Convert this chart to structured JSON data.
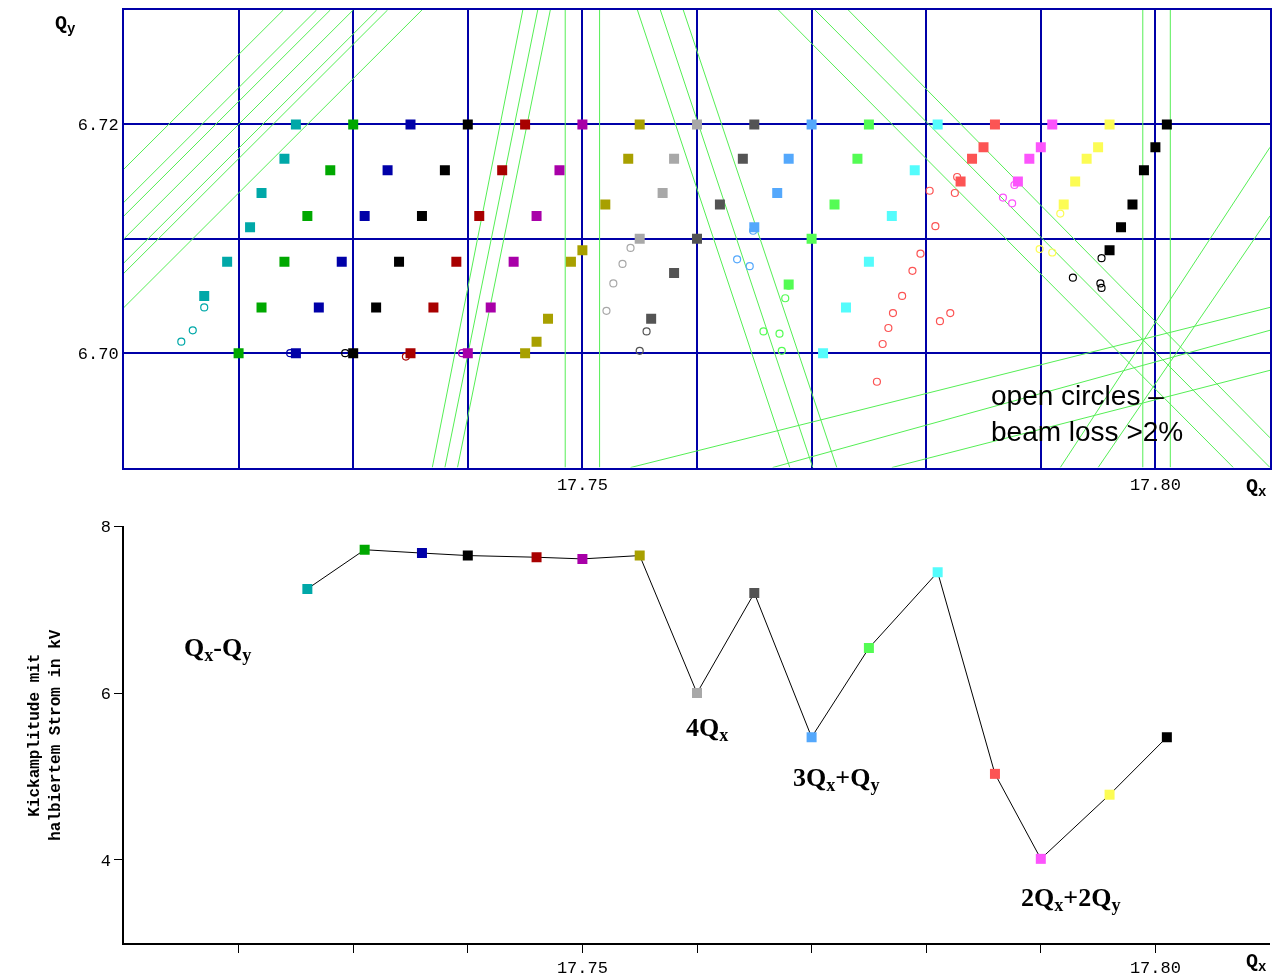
{
  "chart_data": [
    {
      "type": "scatter",
      "xlabel": "Q$_{x}$",
      "ylabel": "Q$_{y}$",
      "xlim": [
        17.71,
        17.81
      ],
      "ylim": [
        6.69,
        6.73
      ],
      "xticks": [
        {
          "value": 17.72,
          "label": null
        },
        {
          "value": 17.73,
          "label": null
        },
        {
          "value": 17.74,
          "label": null
        },
        17.75,
        {
          "value": 17.76,
          "label": null
        },
        {
          "value": 17.77,
          "label": null
        },
        {
          "value": 17.78,
          "label": null
        },
        {
          "value": 17.79,
          "label": null
        },
        {
          "value": 17.8,
          "label": "17.80"
        }
      ],
      "yticks": [
        {
          "value": 6.7,
          "label": "6.70"
        },
        {
          "value": 6.71,
          "label": null
        },
        6.72
      ],
      "grid": true,
      "annotations": [
        "open circles –\nbeam loss >2%"
      ],
      "series": [
        {
          "type": "line",
          "color": "#55ee55",
          "x": [
            17.71,
            17.7239
          ],
          "values": [
            6.7161,
            6.73
          ]
        },
        {
          "type": "line",
          "color": "#55ee55",
          "x": [
            17.71,
            17.7268
          ],
          "values": [
            6.7132,
            6.73
          ]
        },
        {
          "type": "line",
          "color": "#55ee55",
          "x": [
            17.71,
            17.728
          ],
          "values": [
            6.712,
            6.73
          ]
        },
        {
          "type": "line",
          "color": "#55ee55",
          "x": [
            17.71,
            17.73
          ],
          "values": [
            6.71,
            6.73
          ]
        },
        {
          "type": "line",
          "color": "#55ee55",
          "x": [
            17.71,
            17.7321
          ],
          "values": [
            6.7079,
            6.73
          ]
        },
        {
          "type": "line",
          "color": "#55ee55",
          "x": [
            17.71,
            17.733
          ],
          "values": [
            6.707,
            6.73
          ]
        },
        {
          "type": "line",
          "color": "#55ee55",
          "x": [
            17.71,
            17.736
          ],
          "values": [
            6.704,
            6.73
          ]
        },
        {
          "type": "line",
          "color": "#55ee55",
          "x": [
            17.7369,
            17.7448
          ],
          "values": [
            6.69,
            6.73
          ]
        },
        {
          "type": "line",
          "color": "#55ee55",
          "x": [
            17.738,
            17.7461
          ],
          "values": [
            6.69,
            6.73
          ]
        },
        {
          "type": "line",
          "color": "#55ee55",
          "x": [
            17.7391,
            17.7472
          ],
          "values": [
            6.69,
            6.73
          ]
        },
        {
          "type": "line",
          "color": "#55ee55",
          "x": [
            17.7485,
            17.7485
          ],
          "values": [
            6.69,
            6.73
          ]
        },
        {
          "type": "line",
          "color": "#55ee55",
          "x": [
            17.7515,
            17.7515
          ],
          "values": [
            6.69,
            6.73
          ]
        },
        {
          "type": "line",
          "color": "#55ee55",
          "x": [
            17.7989,
            17.7989
          ],
          "values": [
            6.69,
            6.73
          ]
        },
        {
          "type": "line",
          "color": "#55ee55",
          "x": [
            17.8013,
            17.8013
          ],
          "values": [
            6.69,
            6.73
          ]
        },
        {
          "type": "line",
          "color": "#55ee55",
          "x": [
            17.7548,
            17.7681
          ],
          "values": [
            6.73,
            6.69
          ]
        },
        {
          "type": "line",
          "color": "#55ee55",
          "x": [
            17.7568,
            17.7701
          ],
          "values": [
            6.73,
            6.69
          ]
        },
        {
          "type": "line",
          "color": "#55ee55",
          "x": [
            17.7588,
            17.7722
          ],
          "values": [
            6.73,
            6.69
          ]
        },
        {
          "type": "line",
          "color": "#55ee55",
          "x": [
            17.7671,
            17.8068
          ],
          "values": [
            6.73,
            6.69
          ]
        },
        {
          "type": "line",
          "color": "#55ee55",
          "x": [
            17.7703,
            17.81
          ],
          "values": [
            6.73,
            6.69
          ]
        },
        {
          "type": "line",
          "color": "#55ee55",
          "x": [
            17.7732,
            17.81
          ],
          "values": [
            6.73,
            6.6926
          ]
        },
        {
          "type": "line",
          "color": "#55ee55",
          "x": [
            17.7542,
            17.81
          ],
          "values": [
            6.69,
            6.704
          ]
        },
        {
          "type": "line",
          "color": "#55ee55",
          "x": [
            17.7666,
            17.81
          ],
          "values": [
            6.69,
            6.702
          ]
        },
        {
          "type": "line",
          "color": "#55ee55",
          "x": [
            17.777,
            17.81
          ],
          "values": [
            6.69,
            6.6985
          ]
        },
        {
          "type": "line",
          "color": "#55ee55",
          "x": [
            17.7917,
            17.81
          ],
          "values": [
            6.69,
            6.718
          ]
        },
        {
          "type": "line",
          "color": "#55ee55",
          "x": [
            17.795,
            17.81
          ],
          "values": [
            6.69,
            6.712
          ]
        },
        {
          "marker": "square",
          "color": "#00a8a8",
          "x": [
            17.717,
            17.719,
            17.721,
            17.722,
            17.724,
            17.725
          ],
          "values": [
            6.705,
            6.708,
            6.711,
            6.714,
            6.717,
            6.72
          ]
        },
        {
          "marker": "circle",
          "color": "#00a8a8",
          "x": [
            17.715,
            17.716,
            17.717
          ],
          "values": [
            6.701,
            6.702,
            6.704
          ]
        },
        {
          "marker": "square",
          "color": "#00a800",
          "x": [
            17.72,
            17.722,
            17.724,
            17.726,
            17.728,
            17.73
          ],
          "values": [
            6.7,
            6.704,
            6.708,
            6.712,
            6.716,
            6.72
          ]
        },
        {
          "marker": "square",
          "color": "#0000a8",
          "x": [
            17.725,
            17.727,
            17.729,
            17.731,
            17.733,
            17.735
          ],
          "values": [
            6.7,
            6.704,
            6.708,
            6.712,
            6.716,
            6.72
          ]
        },
        {
          "marker": "circle",
          "color": "#0000a8",
          "x": [
            17.7245
          ],
          "values": [
            6.7
          ]
        },
        {
          "marker": "square",
          "color": "#000000",
          "x": [
            17.73,
            17.732,
            17.734,
            17.736,
            17.738,
            17.74
          ],
          "values": [
            6.7,
            6.704,
            6.708,
            6.712,
            6.716,
            6.72
          ]
        },
        {
          "marker": "circle",
          "color": "#000000",
          "x": [
            17.7293
          ],
          "values": [
            6.7
          ]
        },
        {
          "marker": "square",
          "color": "#a80000",
          "x": [
            17.735,
            17.737,
            17.739,
            17.741,
            17.743,
            17.745
          ],
          "values": [
            6.7,
            6.704,
            6.708,
            6.712,
            6.716,
            6.72
          ]
        },
        {
          "marker": "circle",
          "color": "#a80000",
          "x": [
            17.7346
          ],
          "values": [
            6.6997
          ]
        },
        {
          "marker": "square",
          "color": "#a800a8",
          "x": [
            17.74,
            17.742,
            17.744,
            17.746,
            17.748,
            17.75
          ],
          "values": [
            6.7,
            6.704,
            6.708,
            6.712,
            6.716,
            6.72
          ]
        },
        {
          "marker": "circle",
          "color": "#a800a8",
          "x": [
            17.7395
          ],
          "values": [
            6.7
          ]
        },
        {
          "marker": "square",
          "color": "#a8a000",
          "x": [
            17.745,
            17.746,
            17.747,
            17.749,
            17.75,
            17.752,
            17.754,
            17.755
          ],
          "values": [
            6.7,
            6.701,
            6.703,
            6.708,
            6.709,
            6.713,
            6.717,
            6.72
          ]
        },
        {
          "marker": "square",
          "color": "#a8a8a8",
          "x": [
            17.755,
            17.757,
            17.758,
            17.76
          ],
          "values": [
            6.71,
            6.714,
            6.717,
            6.72
          ]
        },
        {
          "marker": "circle",
          "color": "#a8a8a8",
          "x": [
            17.7521,
            17.7527,
            17.7535,
            17.7542
          ],
          "values": [
            6.7037,
            6.7061,
            6.7078,
            6.7092
          ]
        },
        {
          "marker": "square",
          "color": "#545454",
          "x": [
            17.756,
            17.758,
            17.76,
            17.762,
            17.764,
            17.765
          ],
          "values": [
            6.703,
            6.707,
            6.71,
            6.713,
            6.717,
            6.72
          ]
        },
        {
          "marker": "circle",
          "color": "#545454",
          "x": [
            17.755,
            17.7556
          ],
          "values": [
            6.7002,
            6.7019
          ]
        },
        {
          "marker": "square",
          "color": "#54a8fc",
          "x": [
            17.765,
            17.767,
            17.768,
            17.77
          ],
          "values": [
            6.711,
            6.714,
            6.717,
            6.72
          ]
        },
        {
          "marker": "circle",
          "color": "#54a8fc",
          "x": [
            17.7649,
            17.7635,
            17.7646
          ],
          "values": [
            6.7107,
            6.7082,
            6.7076
          ]
        },
        {
          "marker": "square",
          "color": "#54fc54",
          "x": [
            17.768,
            17.77,
            17.772,
            17.774,
            17.775
          ],
          "values": [
            6.706,
            6.71,
            6.713,
            6.717,
            6.72
          ]
        },
        {
          "marker": "circle",
          "color": "#54fc54",
          "x": [
            17.768,
            17.7677,
            17.7658,
            17.7672,
            17.7674
          ],
          "values": [
            6.7059,
            6.7048,
            6.7019,
            6.7017,
            6.7002
          ]
        },
        {
          "marker": "square",
          "color": "#54fcfc",
          "x": [
            17.771,
            17.773,
            17.775,
            17.777,
            17.779,
            17.781
          ],
          "values": [
            6.7,
            6.704,
            6.708,
            6.712,
            6.716,
            6.72
          ]
        },
        {
          "marker": "square",
          "color": "#fc5454",
          "x": [
            17.783,
            17.784,
            17.785,
            17.786
          ],
          "values": [
            6.715,
            6.717,
            6.718,
            6.72
          ]
        },
        {
          "marker": "circle",
          "color": "#fc5454",
          "x": [
            17.7757,
            17.7762,
            17.7767,
            17.7771,
            17.7779,
            17.7788,
            17.7795,
            17.7808,
            17.7803,
            17.7825,
            17.7827,
            17.7812,
            17.7821
          ],
          "values": [
            6.6975,
            6.7008,
            6.7022,
            6.7035,
            6.705,
            6.7072,
            6.7087,
            6.7111,
            6.7142,
            6.714,
            6.7154,
            6.7028,
            6.7035
          ]
        },
        {
          "marker": "square",
          "color": "#fc54fc",
          "x": [
            17.788,
            17.789,
            17.79,
            17.791
          ],
          "values": [
            6.715,
            6.717,
            6.718,
            6.72
          ]
        },
        {
          "marker": "circle",
          "color": "#fc54fc",
          "x": [
            17.7877,
            17.7867,
            17.7875
          ],
          "values": [
            6.7147,
            6.7136,
            6.7131
          ]
        },
        {
          "marker": "square",
          "color": "#fcfc54",
          "x": [
            17.792,
            17.793,
            17.794,
            17.795,
            17.796
          ],
          "values": [
            6.713,
            6.715,
            6.717,
            6.718,
            6.72
          ]
        },
        {
          "marker": "circle",
          "color": "#fcfc54",
          "x": [
            17.7917,
            17.7899,
            17.791
          ],
          "values": [
            6.7122,
            6.7091,
            6.7088
          ]
        },
        {
          "marker": "square",
          "color": "#000000",
          "x": [
            17.796,
            17.797,
            17.798,
            17.799,
            17.8,
            17.801
          ],
          "values": [
            6.709,
            6.711,
            6.713,
            6.716,
            6.718,
            6.72
          ]
        },
        {
          "marker": "circle",
          "color": "#000000",
          "x": [
            17.7953,
            17.7928,
            17.7952,
            17.7953
          ],
          "values": [
            6.7083,
            6.7066,
            6.7061,
            6.7057
          ]
        }
      ]
    },
    {
      "type": "line",
      "xlabel": "Q$_{x}$",
      "ylabel": "Kickamplitude mit\nhalbiertem Strom in kV",
      "xlim": [
        17.71,
        17.81
      ],
      "ylim": [
        3,
        8
      ],
      "xticks": [
        {
          "value": 17.72,
          "label": null
        },
        {
          "value": 17.73,
          "label": null
        },
        {
          "value": 17.74,
          "label": null
        },
        17.75,
        {
          "value": 17.76,
          "label": null
        },
        {
          "value": 17.77,
          "label": null
        },
        {
          "value": 17.78,
          "label": null
        },
        {
          "value": 17.79,
          "label": null
        },
        {
          "value": 17.8,
          "label": "17.80"
        }
      ],
      "yticks": [
        4,
        6,
        8
      ],
      "grid": false,
      "marker": "square",
      "annotations": [
        "Q$_{x}$-Q$_{y}$",
        "4Q$_{x}$",
        "3Q$_{x}$+Q$_{y}$",
        "2Q$_{x}$+2Q$_{y}$"
      ],
      "series": [
        {
          "color": "#000000",
          "colors": [
            "#00a8a8",
            "#00a800",
            "#0000a8",
            "#000000",
            "#a80000",
            "#a800a8",
            "#a8a000",
            "#a8a8a8",
            "#545454",
            "#54a8fc",
            "#54fc54",
            "#54fcfc",
            "#fc5454",
            "#fc54fc",
            "#fcfc54",
            "#000000"
          ],
          "x": [
            17.726,
            17.731,
            17.736,
            17.74,
            17.746,
            17.75,
            17.755,
            17.76,
            17.765,
            17.77,
            17.775,
            17.781,
            17.786,
            17.79,
            17.796,
            17.801
          ],
          "values": [
            7.25,
            7.72,
            7.68,
            7.65,
            7.63,
            7.61,
            7.65,
            6.0,
            7.2,
            5.47,
            6.54,
            7.45,
            5.03,
            4.01,
            4.78,
            5.47
          ]
        }
      ]
    }
  ]
}
